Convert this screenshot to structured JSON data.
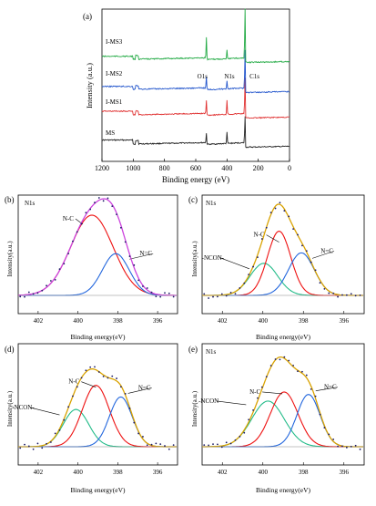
{
  "colors": {
    "ms": "#222222",
    "ims1": "#e03030",
    "ims2": "#2255cc",
    "ims3": "#22aa44",
    "nc": "#ee1111",
    "n_dbl_c": "#2266dd",
    "ncon": "#22bb88",
    "envelope_b": "#cc44dd",
    "envelope_cde": "#d9a200",
    "points": "#1a1a66"
  },
  "chart_data": [
    {
      "panel": "(a)",
      "type": "line",
      "xlabel": "Binding energy (eV)",
      "ylabel": "Intensity (a.u.)",
      "xlim": [
        1200,
        0
      ],
      "x_ticks": [
        "1200",
        "1000",
        "800",
        "600",
        "400",
        "200",
        "0"
      ],
      "peak_labels": [
        {
          "text": "O1s",
          "x": 532
        },
        {
          "text": "N1s",
          "x": 400
        },
        {
          "text": "C1s",
          "x": 285
        }
      ],
      "series": [
        {
          "name": "MS",
          "color_key": "ms",
          "o1s": 10,
          "n1s": 12,
          "c1s": 40,
          "gap_1200_1000": 12
        },
        {
          "name": "I-MS1",
          "color_key": "ims1",
          "o1s": 14,
          "n1s": 16,
          "c1s": 52,
          "gap_1200_1000": 10
        },
        {
          "name": "I-MS2",
          "color_key": "ims2",
          "o1s": 12,
          "n1s": 9,
          "c1s": 56,
          "gap_1200_1000": 6
        },
        {
          "name": "I-MS3",
          "color_key": "ims3",
          "o1s": 22,
          "n1s": 10,
          "c1s": 70,
          "gap_1200_1000": 6
        }
      ]
    },
    {
      "panel": "(b)",
      "type": "line",
      "title": "N1s",
      "xlabel": "Binding energy(eV)",
      "ylabel": "Intensity(a.u.)",
      "xlim": [
        403,
        395
      ],
      "x_ticks": [
        "402",
        "400",
        "398",
        "396"
      ],
      "envelope_color_key": "envelope_b",
      "components": [
        {
          "name": "N-C",
          "center": 399.3,
          "fwhm": 2.5,
          "amp": 1.0,
          "color_key": "nc"
        },
        {
          "name": "N=C",
          "center": 398.1,
          "fwhm": 1.6,
          "amp": 0.52,
          "color_key": "n_dbl_c"
        }
      ]
    },
    {
      "panel": "(c)",
      "type": "line",
      "title": "N1s",
      "xlabel": "Binding energy(eV)",
      "ylabel": "Intensity(a.u.)",
      "xlim": [
        403,
        395
      ],
      "x_ticks": [
        "402",
        "400",
        "398",
        "396"
      ],
      "envelope_color_key": "envelope_cde",
      "components": [
        {
          "name": "-NCON-",
          "center": 399.95,
          "fwhm": 1.6,
          "amp": 0.4,
          "color_key": "ncon"
        },
        {
          "name": "N-C",
          "center": 399.2,
          "fwhm": 1.35,
          "amp": 0.8,
          "color_key": "nc"
        },
        {
          "name": "N=C",
          "center": 398.1,
          "fwhm": 1.5,
          "amp": 0.53,
          "color_key": "n_dbl_c"
        }
      ]
    },
    {
      "panel": "(d)",
      "type": "line",
      "title": "",
      "xlabel": "Binding energy(eV)",
      "ylabel": "Intensity(a.u.)",
      "xlim": [
        403,
        395
      ],
      "x_ticks": [
        "402",
        "400",
        "398",
        "396"
      ],
      "envelope_color_key": "envelope_cde",
      "components": [
        {
          "name": "-NCON-",
          "center": 400.1,
          "fwhm": 1.5,
          "amp": 0.45,
          "color_key": "ncon"
        },
        {
          "name": "N-C",
          "center": 399.1,
          "fwhm": 1.6,
          "amp": 0.74,
          "color_key": "nc"
        },
        {
          "name": "N=C",
          "center": 397.85,
          "fwhm": 1.35,
          "amp": 0.6,
          "color_key": "n_dbl_c"
        }
      ]
    },
    {
      "panel": "(e)",
      "type": "line",
      "title": "N1s",
      "xlabel": "Binding energy(eV)",
      "ylabel": "Intensity(a.u.)",
      "xlim": [
        403,
        395
      ],
      "x_ticks": [
        "402",
        "400",
        "398",
        "396"
      ],
      "envelope_color_key": "envelope_cde",
      "components": [
        {
          "name": "-NCON-",
          "center": 399.75,
          "fwhm": 1.9,
          "amp": 0.55,
          "color_key": "ncon"
        },
        {
          "name": "N-C",
          "center": 398.95,
          "fwhm": 1.6,
          "amp": 0.66,
          "color_key": "nc"
        },
        {
          "name": "N=C",
          "center": 397.75,
          "fwhm": 1.35,
          "amp": 0.63,
          "color_key": "n_dbl_c"
        }
      ]
    }
  ]
}
